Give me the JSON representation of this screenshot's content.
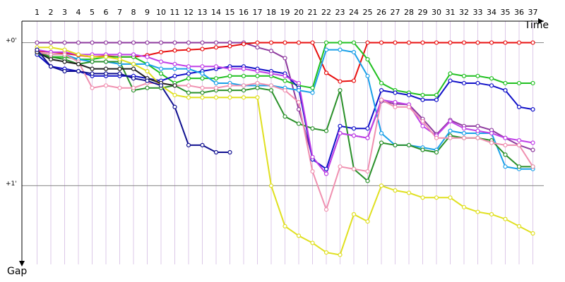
{
  "chart_data": {
    "type": "line",
    "x_label": "Time",
    "y_label": "Gap",
    "x": [
      1,
      2,
      3,
      4,
      5,
      6,
      7,
      8,
      9,
      10,
      11,
      12,
      13,
      14,
      15,
      16,
      17,
      18,
      19,
      20,
      21,
      22,
      23,
      24,
      25,
      26,
      27,
      28,
      29,
      30,
      31,
      32,
      33,
      34,
      35,
      36,
      37
    ],
    "xlim": [
      0,
      37
    ],
    "xticks": [
      1,
      2,
      3,
      4,
      5,
      6,
      7,
      8,
      9,
      10,
      11,
      12,
      13,
      14,
      15,
      16,
      17,
      18,
      19,
      20,
      21,
      22,
      23,
      24,
      25,
      26,
      27,
      28,
      29,
      30,
      31,
      32,
      33,
      34,
      35,
      36,
      37
    ],
    "ylim": [
      -9,
      93
    ],
    "y_inverted": true,
    "yticks": [
      {
        "value": 0,
        "label": "+0'"
      },
      {
        "value": 60,
        "label": "+1'"
      }
    ],
    "grid": true,
    "series": [
      {
        "color": "#8e3a9e",
        "values": [
          0,
          0,
          0,
          0,
          0,
          0,
          0,
          0,
          0,
          0,
          0,
          0,
          0,
          0,
          0,
          0,
          2,
          3.5,
          6.5,
          28,
          48,
          55,
          38,
          39,
          40,
          24.6,
          25.7,
          26,
          32,
          38.5,
          32.5,
          35,
          35,
          36.7,
          40,
          43,
          45
        ]
      },
      {
        "color": "#e81010",
        "values": [
          3.5,
          4,
          4.5,
          5.3,
          6,
          5.6,
          6,
          6,
          5.3,
          4,
          3.3,
          3,
          2.7,
          2,
          1.5,
          0.6,
          0,
          0,
          0,
          0,
          0,
          12.7,
          16.3,
          16,
          0,
          0,
          0,
          0,
          0,
          0,
          0,
          0,
          0,
          0,
          0,
          0,
          0
        ]
      },
      {
        "color": "#20c020",
        "values": [
          5,
          6,
          6,
          7,
          7,
          6,
          6,
          6,
          9,
          13,
          17,
          15,
          15,
          15,
          14,
          14,
          14,
          14,
          16,
          18,
          19,
          0,
          0,
          0,
          7,
          17,
          20,
          21,
          22,
          22,
          13,
          14,
          14,
          15,
          17,
          17,
          17
        ]
      },
      {
        "color": "#1010c8",
        "values": [
          5,
          10,
          11,
          12,
          14,
          14,
          14,
          14,
          15,
          16,
          14,
          13,
          12,
          11,
          10,
          10,
          11,
          12,
          13,
          19,
          49,
          53,
          35,
          36,
          36,
          20,
          21,
          22,
          24,
          24,
          16,
          17,
          17,
          18,
          20,
          27,
          28
        ]
      },
      {
        "color": "#1aa0e8",
        "values": [
          4,
          5,
          5,
          7,
          8,
          8,
          9,
          9,
          9,
          11,
          11,
          11,
          13,
          17,
          17,
          18,
          18,
          18,
          19,
          20,
          21,
          3,
          3,
          4,
          14,
          38,
          43,
          43,
          44,
          45,
          37,
          38,
          38,
          38,
          52,
          53,
          53
        ]
      },
      {
        "color": "#2a902a",
        "values": [
          4,
          6,
          7,
          9,
          8,
          8,
          8,
          20,
          19,
          19,
          18,
          21,
          21,
          20,
          20,
          20,
          19,
          20,
          31,
          34,
          36,
          37,
          20,
          53,
          58,
          42,
          43,
          43,
          45,
          46,
          39,
          40,
          40,
          41,
          47,
          52,
          52
        ]
      },
      {
        "color": "#c040e8",
        "values": [
          3,
          4,
          4,
          5,
          5,
          5,
          5,
          5,
          6,
          8,
          9,
          10,
          10,
          10,
          11,
          11,
          12,
          13,
          14,
          17,
          48,
          55,
          38,
          39,
          40,
          24,
          25,
          26,
          35,
          39,
          33,
          36,
          37,
          38,
          40,
          41,
          42
        ]
      },
      {
        "color": "#f090b0",
        "values": [
          4,
          5,
          5,
          8,
          19,
          18,
          19,
          19,
          17,
          17,
          18,
          18,
          19,
          19,
          18,
          18,
          17,
          18,
          20,
          25,
          54,
          70,
          52,
          53,
          54,
          24,
          27,
          27,
          33,
          40,
          40,
          40,
          40,
          42,
          43,
          43,
          52
        ]
      },
      {
        "color": "#e0e020",
        "values": [
          2,
          2,
          3,
          5,
          6,
          6,
          7,
          9,
          12,
          18,
          22,
          23,
          23,
          23,
          23,
          23,
          23,
          60,
          77,
          81,
          84,
          88,
          89,
          72,
          75,
          60,
          62,
          63,
          65,
          65,
          65,
          69,
          71,
          72,
          74,
          77,
          80
        ]
      },
      {
        "color": "#202020",
        "values": [
          4,
          7,
          8,
          9,
          11,
          11,
          11,
          11,
          15,
          17,
          18,
          null,
          null,
          null,
          null,
          null,
          null,
          null,
          null,
          null,
          null,
          null,
          null,
          null,
          null,
          null,
          null,
          null,
          null,
          null,
          null,
          null,
          null,
          null,
          null,
          null,
          null
        ]
      },
      {
        "color": "#101090",
        "values": [
          3,
          10,
          12,
          12,
          13,
          13,
          13,
          15,
          16,
          18,
          27,
          43,
          43,
          46,
          46,
          null,
          null,
          null,
          null,
          null,
          null,
          null,
          null,
          null,
          null,
          null,
          null,
          null,
          null,
          null,
          null,
          null,
          null,
          null,
          null,
          null,
          null
        ]
      }
    ]
  }
}
